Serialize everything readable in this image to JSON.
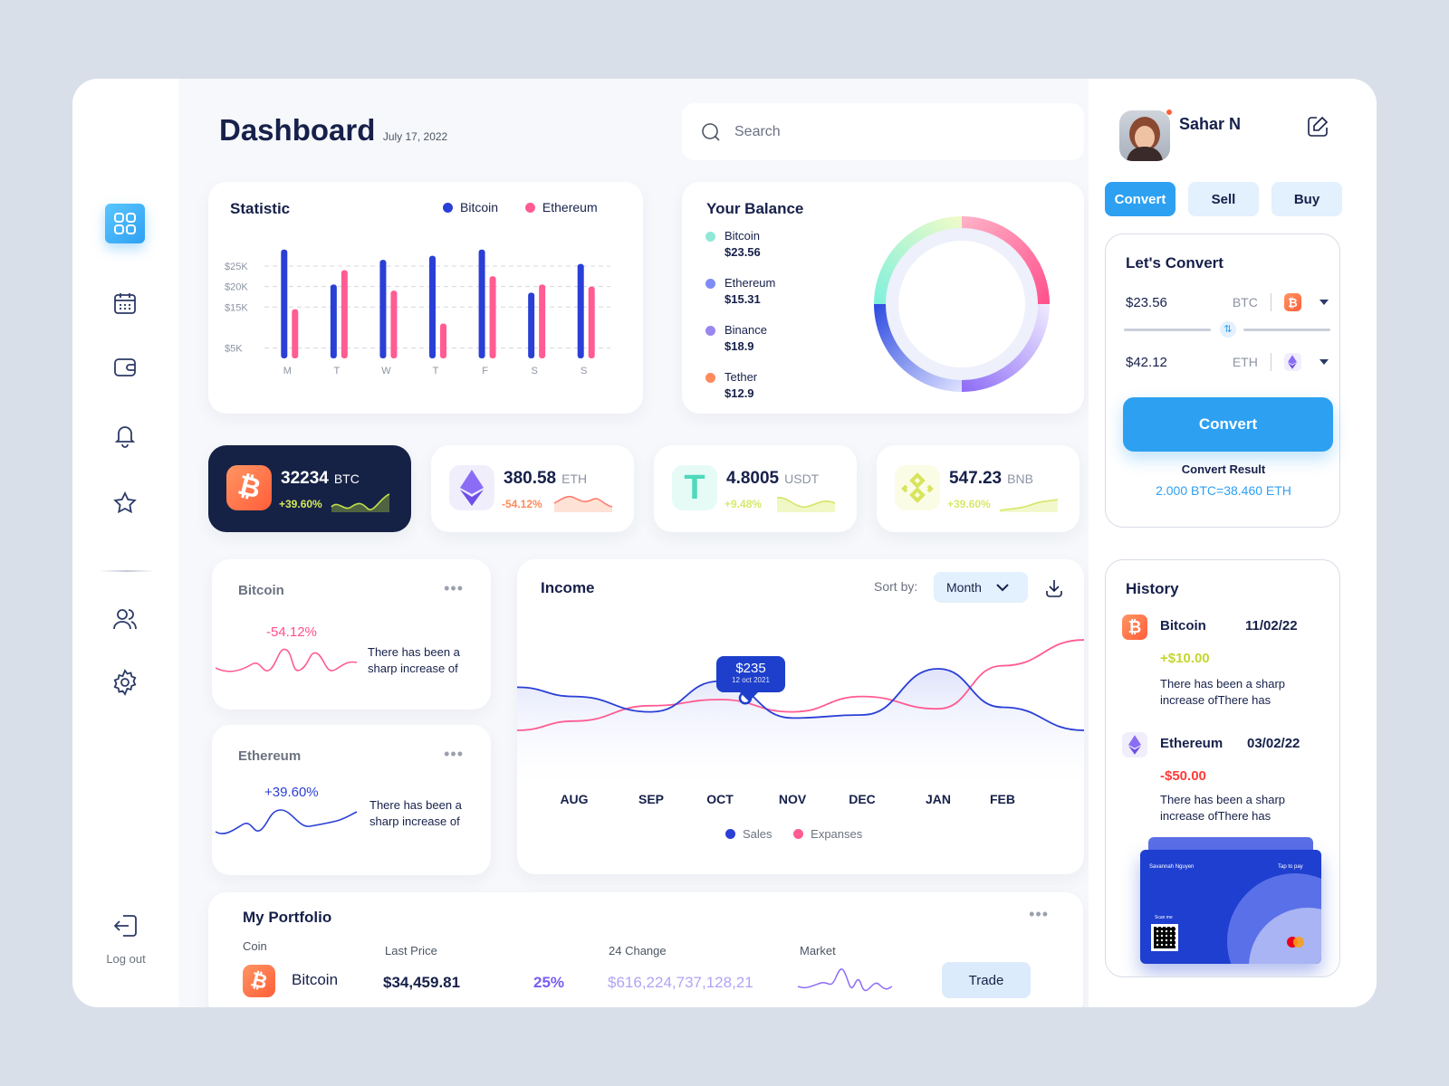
{
  "header": {
    "title": "Dashboard",
    "date": "July 17, 2022",
    "search_placeholder": "Search"
  },
  "sidebar": {
    "logout_label": "Log out"
  },
  "statistic": {
    "title": "Statistic",
    "legend": [
      "Bitcoin",
      "Ethereum"
    ],
    "colors": [
      "#2a3fd6",
      "#ff5c93"
    ]
  },
  "balance": {
    "title": "Your Balance",
    "items": [
      {
        "name": "Bitcoin",
        "value": "$23.56",
        "color": "#8ee9d7"
      },
      {
        "name": "Ethereum",
        "value": "$15.31",
        "color": "#7f8cf5"
      },
      {
        "name": "Binance",
        "value": "$18.9",
        "color": "#9a86f0"
      },
      {
        "name": "Tether",
        "value": "$12.9",
        "color": "#ff8a5c"
      }
    ]
  },
  "coins": [
    {
      "value": "32234",
      "unit": "BTC",
      "pct": "+39.60%"
    },
    {
      "value": "380.58",
      "unit": "ETH",
      "pct": "-54.12%"
    },
    {
      "value": "4.8005",
      "unit": "USDT",
      "pct": "+9.48%"
    },
    {
      "value": "547.23",
      "unit": "BNB",
      "pct": "+39.60%"
    }
  ],
  "mini": [
    {
      "title": "Bitcoin",
      "pct": "-54.12%",
      "desc": "There has been a sharp increase of"
    },
    {
      "title": "Ethereum",
      "pct": "+39.60%",
      "desc": "There has been a sharp increase of"
    }
  ],
  "income": {
    "title": "Income",
    "sort_label": "Sort by:",
    "sort_value": "Month",
    "tooltip_value": "$235",
    "tooltip_date": "12 oct 2021",
    "legend": [
      "Sales",
      "Expanses"
    ]
  },
  "portfolio": {
    "title": "My Portfolio",
    "headers": [
      "Coin",
      "Last Price",
      "24 Change",
      "Market"
    ],
    "row": {
      "coin": "Bitcoin",
      "price": "$34,459.81",
      "pct": "25%",
      "change": "$616,224,737,128,21",
      "action": "Trade"
    }
  },
  "profile": {
    "name": "Sahar N"
  },
  "tabs": [
    "Convert",
    "Sell",
    "Buy"
  ],
  "convert": {
    "title": "Let's Convert",
    "from_value": "$23.56",
    "from_unit": "BTC",
    "to_value": "$42.12",
    "to_unit": "ETH",
    "button": "Convert",
    "result_label": "Convert Result",
    "result": "2.000 BTC=38.460 ETH"
  },
  "history": {
    "title": "History",
    "items": [
      {
        "coin": "Bitcoin",
        "date": "11/02/22",
        "amount": "+$10.00",
        "desc": "There has been a sharp increase ofThere has"
      },
      {
        "coin": "Ethereum",
        "date": "03/02/22",
        "amount": "-$50.00",
        "desc": "There has been a sharp increase ofThere has"
      }
    ]
  },
  "card": {
    "holder": "Savannah Nguyen",
    "tap": "Tap to pay",
    "scan": "Scan me"
  },
  "chart_data": [
    {
      "type": "bar",
      "title": "Statistic",
      "categories": [
        "M",
        "T",
        "W",
        "T",
        "F",
        "S",
        "S"
      ],
      "yticks": [
        "$5K",
        "$15K",
        "$20K",
        "$25K"
      ],
      "series": [
        {
          "name": "Bitcoin",
          "values": [
            26.5,
            18,
            24,
            25,
            26.5,
            16,
            23
          ]
        },
        {
          "name": "Ethereum",
          "values": [
            12,
            21.5,
            16.5,
            8.5,
            20,
            18,
            17.5
          ]
        }
      ]
    },
    {
      "type": "pie",
      "title": "Your Balance",
      "categories": [
        "Bitcoin",
        "Ethereum",
        "Binance",
        "Tether"
      ],
      "values": [
        23.56,
        15.31,
        18.9,
        12.9
      ]
    },
    {
      "type": "line",
      "title": "Income",
      "categories": [
        "AUG",
        "SEP",
        "OCT",
        "NOV",
        "DEC",
        "JAN",
        "FEB"
      ],
      "series": [
        {
          "name": "Sales",
          "values": [
            52,
            42,
            62,
            38,
            40,
            70,
            45
          ]
        },
        {
          "name": "Expanses",
          "values": [
            36,
            46,
            50,
            42,
            52,
            44,
            72
          ]
        }
      ]
    }
  ]
}
